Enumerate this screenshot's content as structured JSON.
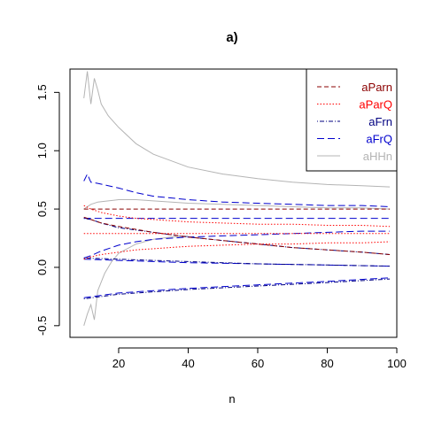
{
  "chart_data": {
    "type": "line",
    "title": "a)",
    "xlabel": "n",
    "ylabel": "",
    "xlim": [
      6,
      100
    ],
    "ylim": [
      -0.6,
      1.7
    ],
    "xticks": [
      20,
      40,
      60,
      80,
      100
    ],
    "yticks": [
      -0.5,
      0.0,
      0.5,
      1.0,
      1.5
    ],
    "xtick_labels": [
      "20",
      "40",
      "60",
      "80",
      "100"
    ],
    "ytick_labels": [
      "-0.5",
      "0.0",
      "0.5",
      "1.0",
      "1.5"
    ],
    "grid": false,
    "legend_position": "top-right",
    "legend": [
      {
        "label": "aParn",
        "color": "#8b0000",
        "dash": "dashed"
      },
      {
        "label": "aParQ",
        "color": "#ff0000",
        "dash": "dotted"
      },
      {
        "label": "aFrn",
        "color": "#000080",
        "dash": "dotdash"
      },
      {
        "label": "aFrQ",
        "color": "#0000cd",
        "dash": "longdash"
      },
      {
        "label": "aHHn",
        "color": "#b4b4b4",
        "dash": "solid"
      }
    ],
    "lines": [
      {
        "group": "aHHn",
        "x": [
          10,
          11,
          12,
          13,
          14,
          15,
          17,
          20,
          25,
          30,
          40,
          50,
          60,
          70,
          80,
          90,
          98
        ],
        "y": [
          1.45,
          1.68,
          1.4,
          1.62,
          1.52,
          1.4,
          1.3,
          1.2,
          1.06,
          0.97,
          0.86,
          0.8,
          0.76,
          0.73,
          0.71,
          0.7,
          0.69
        ]
      },
      {
        "group": "aHHn",
        "x": [
          10,
          12,
          14,
          17,
          20,
          25,
          30,
          40,
          50,
          60,
          70,
          80,
          90,
          98
        ],
        "y": [
          0.5,
          0.54,
          0.56,
          0.57,
          0.58,
          0.58,
          0.57,
          0.55,
          0.54,
          0.53,
          0.52,
          0.51,
          0.51,
          0.5
        ]
      },
      {
        "group": "aHHn",
        "x": [
          10,
          11,
          12,
          13,
          14,
          16,
          18,
          20,
          25,
          30,
          35,
          40
        ],
        "y": [
          -0.5,
          -0.4,
          -0.32,
          -0.45,
          -0.2,
          -0.05,
          0.05,
          0.12,
          0.2,
          0.24,
          0.26,
          0.27
        ]
      },
      {
        "group": "aFrQ",
        "x": [
          10,
          11,
          12,
          14,
          17,
          20,
          25,
          30,
          40,
          50,
          60,
          70,
          80,
          90,
          98
        ],
        "y": [
          0.74,
          0.8,
          0.73,
          0.72,
          0.7,
          0.68,
          0.64,
          0.61,
          0.58,
          0.56,
          0.55,
          0.54,
          0.53,
          0.53,
          0.52
        ]
      },
      {
        "group": "aFrQ",
        "x": [
          10,
          15,
          20,
          30,
          40,
          60,
          80,
          98
        ],
        "y": [
          0.42,
          0.42,
          0.42,
          0.42,
          0.42,
          0.42,
          0.42,
          0.42
        ]
      },
      {
        "group": "aFrQ",
        "x": [
          10,
          12,
          15,
          20,
          25,
          30,
          40,
          50,
          60,
          70,
          80,
          90,
          98
        ],
        "y": [
          0.08,
          0.1,
          0.14,
          0.19,
          0.22,
          0.24,
          0.26,
          0.27,
          0.28,
          0.29,
          0.3,
          0.31,
          0.31
        ]
      },
      {
        "group": "aFrQ",
        "x": [
          10,
          20,
          30,
          40,
          60,
          80,
          98
        ],
        "y": [
          0.07,
          0.06,
          0.05,
          0.04,
          0.03,
          0.02,
          0.01
        ]
      },
      {
        "group": "aFrQ",
        "x": [
          10,
          15,
          20,
          30,
          40,
          60,
          80,
          98
        ],
        "y": [
          -0.26,
          -0.24,
          -0.22,
          -0.2,
          -0.18,
          -0.15,
          -0.12,
          -0.09
        ]
      },
      {
        "group": "aFrn",
        "x": [
          10,
          12,
          15,
          20,
          30,
          40,
          50,
          60,
          70,
          80,
          90,
          98
        ],
        "y": [
          0.42,
          0.41,
          0.38,
          0.34,
          0.3,
          0.26,
          0.23,
          0.2,
          0.17,
          0.15,
          0.13,
          0.11
        ]
      },
      {
        "group": "aFrn",
        "x": [
          10,
          20,
          30,
          40,
          60,
          80,
          98
        ],
        "y": [
          0.08,
          0.07,
          0.06,
          0.05,
          0.03,
          0.02,
          0.01
        ]
      },
      {
        "group": "aFrn",
        "x": [
          10,
          15,
          20,
          30,
          40,
          60,
          80,
          98
        ],
        "y": [
          -0.27,
          -0.25,
          -0.23,
          -0.21,
          -0.19,
          -0.16,
          -0.13,
          -0.1
        ]
      },
      {
        "group": "aParn",
        "x": [
          10,
          15,
          20,
          30,
          40,
          60,
          80,
          98
        ],
        "y": [
          0.5,
          0.5,
          0.5,
          0.5,
          0.5,
          0.5,
          0.5,
          0.5
        ]
      },
      {
        "group": "aParn",
        "x": [
          10,
          12,
          15,
          20,
          30,
          40,
          50,
          60,
          70,
          80,
          90,
          98
        ],
        "y": [
          0.43,
          0.41,
          0.38,
          0.35,
          0.3,
          0.26,
          0.23,
          0.2,
          0.17,
          0.15,
          0.13,
          0.11
        ]
      },
      {
        "group": "aParQ",
        "x": [
          10,
          12,
          15,
          20,
          25,
          30,
          40,
          50,
          60,
          70,
          80,
          90,
          98
        ],
        "y": [
          0.53,
          0.5,
          0.47,
          0.44,
          0.42,
          0.41,
          0.39,
          0.38,
          0.37,
          0.37,
          0.36,
          0.36,
          0.35
        ]
      },
      {
        "group": "aParQ",
        "x": [
          10,
          15,
          20,
          30,
          40,
          60,
          80,
          98
        ],
        "y": [
          0.29,
          0.29,
          0.29,
          0.29,
          0.29,
          0.29,
          0.29,
          0.29
        ]
      },
      {
        "group": "aParQ",
        "x": [
          10,
          12,
          15,
          20,
          25,
          30,
          40,
          50,
          60,
          70,
          80,
          90,
          98
        ],
        "y": [
          0.07,
          0.09,
          0.11,
          0.13,
          0.15,
          0.16,
          0.18,
          0.19,
          0.2,
          0.2,
          0.21,
          0.21,
          0.22
        ]
      }
    ]
  }
}
